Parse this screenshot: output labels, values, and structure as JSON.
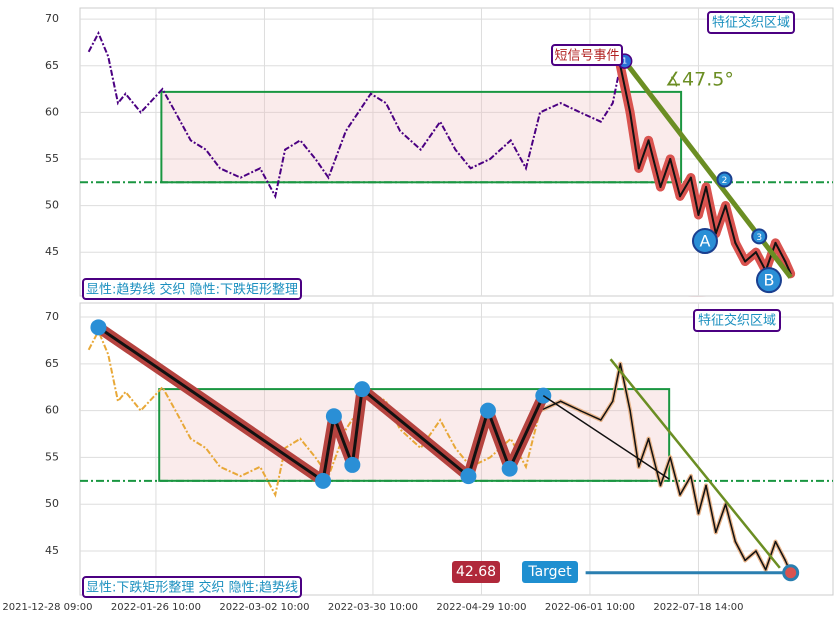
{
  "chart_data": [
    {
      "type": "line",
      "ylim": [
        40.3,
        71.2
      ],
      "yticks": [
        45,
        50,
        55,
        60,
        65,
        70
      ],
      "xlim": [
        3,
        72.4
      ],
      "xticks": [
        0,
        10,
        20,
        30,
        40,
        50,
        60
      ],
      "grid": true,
      "x": [
        3.8,
        4.7,
        5.6,
        6.5,
        7.2,
        8.6,
        10.6,
        11.8,
        13.2,
        14.6,
        15.9,
        17.8,
        19.6,
        21.0,
        21.9,
        23.3,
        24.7,
        25.9,
        27.5,
        29.8,
        31.2,
        32.5,
        34.4,
        36.2,
        37.6,
        39.0,
        40.8,
        42.7,
        44.1,
        45.4,
        47.3,
        49.1,
        51.0,
        52.1,
        52.8,
        53.7,
        54.5,
        55.4,
        56.5,
        57.4,
        58.3,
        59.3,
        60.0,
        60.7,
        61.6,
        62.5,
        63.4,
        64.3,
        65.3,
        66.2,
        67.1,
        68.0,
        68.5
      ],
      "series": [
        {
          "color": "#4b0082",
          "values": [
            66.5,
            68.5,
            66,
            61,
            62,
            60,
            62.5,
            60,
            57,
            56,
            54,
            53,
            54,
            51,
            56,
            57,
            55,
            53,
            58,
            62,
            61,
            58,
            56,
            59,
            56,
            54,
            55,
            57,
            54,
            60,
            61,
            60,
            59,
            61,
            65,
            60,
            54,
            57,
            52,
            55,
            51,
            53,
            49,
            52,
            47,
            50,
            46,
            44,
            45,
            43,
            46,
            44,
            42.68
          ]
        }
      ],
      "hline": 52.5,
      "rect": {
        "x": [
          10.5,
          58.4
        ],
        "y": [
          52.5,
          62.2
        ]
      },
      "signal": {
        "label": "短信号事件",
        "marker": "1",
        "x": 53.2,
        "y": 65.5
      },
      "angle_label": "∡47.5°",
      "region_label": "特征交织区域",
      "pattern_label": "显性:趋势线 交织 隐性:下跌矩形整理",
      "trendline": {
        "x": [
          53.2,
          68.5
        ],
        "y": [
          65.5,
          42.3
        ]
      },
      "points": [
        {
          "label": "A",
          "x": 60.6,
          "y": 46.2
        },
        {
          "label": "B",
          "x": 66.5,
          "y": 42.0
        },
        {
          "label": "2",
          "x": 62.4,
          "y": 52.8
        },
        {
          "label": "3",
          "x": 65.6,
          "y": 46.7
        }
      ]
    },
    {
      "type": "line",
      "ylim": [
        40.3,
        71.5
      ],
      "yticks": [
        45,
        50,
        55,
        60,
        65,
        70
      ],
      "xlim": [
        3,
        72.4
      ],
      "xticks": [
        {
          "value": 0,
          "label": "2021-12-28 09:00"
        },
        {
          "value": 10,
          "label": "2022-01-26 10:00"
        },
        {
          "value": 20,
          "label": "2022-03-02 10:00"
        },
        {
          "value": 30,
          "label": "2022-03-30 10:00"
        },
        {
          "value": 40,
          "label": "2022-04-29 10:00"
        },
        {
          "value": 50,
          "label": "2022-06-01 10:00"
        },
        {
          "value": 60,
          "label": "2022-07-18 14:00"
        }
      ],
      "grid": true,
      "x": [
        3.8,
        4.7,
        5.6,
        6.5,
        7.2,
        8.6,
        10.6,
        11.8,
        13.2,
        14.6,
        15.9,
        17.8,
        19.6,
        21.0,
        21.9,
        23.3,
        24.7,
        25.9,
        27.5,
        29.8,
        31.2,
        32.5,
        34.4,
        36.2,
        37.6,
        39.0,
        40.8,
        42.7,
        44.1,
        45.4,
        47.3,
        49.1,
        51.0,
        52.1,
        52.8,
        53.7,
        54.5,
        55.4,
        56.5,
        57.4,
        58.3,
        59.3,
        60.0,
        60.7,
        61.6,
        62.5,
        63.4,
        64.3,
        65.3,
        66.2,
        67.1,
        68.0,
        68.5
      ],
      "series": [
        {
          "color": "#e8a838",
          "values": [
            66.5,
            68.5,
            66,
            61,
            62,
            60,
            62.5,
            60,
            57,
            56,
            54,
            53,
            54,
            51,
            56,
            57,
            55,
            53,
            58,
            62,
            61,
            58,
            56,
            59,
            56,
            54,
            55,
            57,
            54,
            60,
            61,
            60,
            59,
            61,
            65,
            60,
            54,
            57,
            52,
            55,
            51,
            53,
            49,
            52,
            47,
            50,
            46,
            44,
            45,
            43,
            46,
            44,
            42.68
          ]
        }
      ],
      "hline": 52.5,
      "rect": {
        "x": [
          10.3,
          57.3
        ],
        "y": [
          52.5,
          62.3
        ]
      },
      "region_label": "特征交织区域",
      "pattern_label": "显性:下跌矩形整理 交织 隐性:趋势线",
      "zigzag": {
        "x": [
          4.7,
          25.4,
          26.4,
          28.1,
          29.0,
          38.8,
          40.6,
          42.6,
          45.7
        ],
        "y": [
          68.9,
          52.5,
          59.4,
          54.2,
          62.3,
          53.0,
          60.0,
          53.8,
          61.6
        ]
      },
      "trendline": {
        "x": [
          45.7,
          57.3
        ],
        "y": [
          61.6,
          52.7
        ]
      },
      "trendline2": {
        "x": [
          51.9,
          67.5
        ],
        "y": [
          65.5,
          43.2
        ]
      },
      "target": {
        "label": "Target",
        "value": 42.68,
        "x": [
          49.6,
          68.5
        ]
      }
    }
  ]
}
